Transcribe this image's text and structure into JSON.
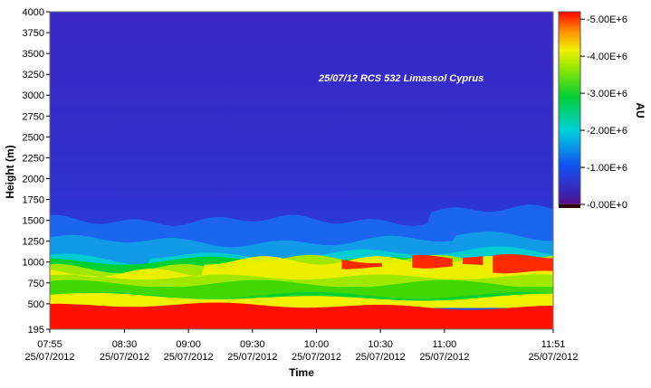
{
  "chart_data": {
    "type": "heatmap",
    "annotation": "25/07/12 RCS 532 Limassol Cyprus",
    "xlabel": "Time",
    "ylabel": "Height (m)",
    "xlim": [
      "07:55",
      "11:51"
    ],
    "ylim": [
      195,
      4000
    ],
    "x_ticks": [
      {
        "time": "07:55",
        "date": "25/07/2012"
      },
      {
        "time": "08:30",
        "date": "25/07/2012"
      },
      {
        "time": "09:00",
        "date": "25/07/2012"
      },
      {
        "time": "09:30",
        "date": "25/07/2012"
      },
      {
        "time": "10:00",
        "date": "25/07/2012"
      },
      {
        "time": "10:30",
        "date": "25/07/2012"
      },
      {
        "time": "11:00",
        "date": "25/07/2012"
      },
      {
        "time": "11:51",
        "date": "25/07/2012"
      }
    ],
    "y_ticks": [
      195,
      500,
      750,
      1000,
      1250,
      1500,
      1750,
      2000,
      2250,
      2500,
      2750,
      3000,
      3250,
      3500,
      3750,
      4000
    ],
    "colorbar": {
      "label": "AU",
      "min": 0,
      "max": 5200000,
      "ticks": [
        "0.00E+0",
        "1.00E+6",
        "2.00E+6",
        "3.00E+6",
        "4.00E+6",
        "5.00E+6"
      ],
      "tick_values": [
        0,
        1000000,
        2000000,
        3000000,
        4000000,
        5000000
      ],
      "colors": [
        "#5a0a8a",
        "#3030c8",
        "#1060f0",
        "#00c8e8",
        "#00d030",
        "#60e000",
        "#f0f000",
        "#ff9000",
        "#ff0000"
      ]
    },
    "layers": [
      {
        "description_height_m": "195-450",
        "value": 5000000
      },
      {
        "description_height_m": "450-600",
        "value": 3500000
      },
      {
        "description_height_m": "600-900",
        "value": 3000000
      },
      {
        "description_height_m": "900-1100",
        "value": 3600000
      },
      {
        "description_height_m": "1100-1400",
        "value": 1800000
      },
      {
        "description_height_m": "1400-2000",
        "value": 1000000
      },
      {
        "description_height_m": "2000-4000",
        "value": 600000
      }
    ]
  }
}
